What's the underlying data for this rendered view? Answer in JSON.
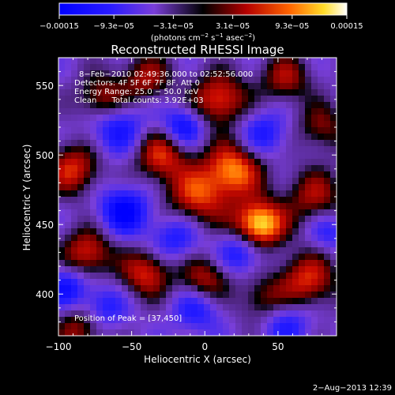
{
  "chart_data": {
    "type": "heatmap",
    "title": "Reconstructed RHESSI Image",
    "xlabel": "Heliocentric X (arcsec)",
    "ylabel": "Heliocentric Y (arcsec)",
    "xlim": [
      -100,
      90
    ],
    "ylim": [
      370,
      570
    ],
    "x_ticks": [
      -100,
      -50,
      0,
      50
    ],
    "x_tick_labels": [
      "−100",
      "−50",
      "0",
      "50"
    ],
    "y_ticks": [
      400,
      450,
      500,
      550
    ],
    "y_tick_labels": [
      "400",
      "450",
      "500",
      "550"
    ],
    "colorbar": {
      "range": [
        -0.00015,
        0.00015
      ],
      "ticks": [
        -0.00015,
        -9.3e-05,
        -3.1e-05,
        3.1e-05,
        9.3e-05,
        0.00015
      ],
      "tick_labels": [
        "−0.00015",
        "−9.3e−05",
        "−3.1e−05",
        "3.1e−05",
        "9.3e−05",
        "0.00015"
      ],
      "units_text": "(photons cm",
      "units_sup1": "−2",
      "units_mid": " s",
      "units_sup2": "−1",
      "units_tail": " asec",
      "units_sup3": "−2",
      "units_close": ")",
      "colors": [
        "#0000ff",
        "#7a3ed8",
        "#000000",
        "#b40000",
        "#ff6400",
        "#ffdc28",
        "#ffffff"
      ]
    },
    "info_lines": [
      "8−Feb−2010 02:49:36.000 to 02:52:56.000",
      "Detectors: 4F 5F 6F 7F 8F, Att 0",
      "Energy Range: 25.0 − 50.0 keV",
      "Clean      Total counts: 3.92E+03"
    ],
    "peak_label": "Position of Peak = [37,450]",
    "peak": {
      "x": 37,
      "y": 450
    },
    "blobs": [
      {
        "x": 37,
        "y": 450,
        "v": 1.5,
        "s": 12
      },
      {
        "x": 20,
        "y": 490,
        "v": 1.1,
        "s": 14
      },
      {
        "x": -5,
        "y": 470,
        "v": 0.9,
        "s": 15
      },
      {
        "x": -30,
        "y": 500,
        "v": 0.9,
        "s": 13
      },
      {
        "x": 10,
        "y": 540,
        "v": 1.0,
        "s": 13
      },
      {
        "x": 55,
        "y": 555,
        "v": 0.7,
        "s": 12
      },
      {
        "x": 75,
        "y": 470,
        "v": 0.7,
        "s": 14
      },
      {
        "x": 70,
        "y": 410,
        "v": 0.9,
        "s": 14
      },
      {
        "x": 40,
        "y": 395,
        "v": 0.6,
        "s": 12
      },
      {
        "x": 0,
        "y": 410,
        "v": 0.8,
        "s": 12
      },
      {
        "x": -40,
        "y": 415,
        "v": 0.9,
        "s": 12
      },
      {
        "x": -80,
        "y": 430,
        "v": 0.9,
        "s": 12
      },
      {
        "x": -90,
        "y": 490,
        "v": 0.9,
        "s": 13
      },
      {
        "x": -70,
        "y": 540,
        "v": 0.8,
        "s": 12
      },
      {
        "x": -40,
        "y": 555,
        "v": 0.7,
        "s": 12
      },
      {
        "x": -85,
        "y": 375,
        "v": 0.7,
        "s": 12
      },
      {
        "x": 80,
        "y": 520,
        "v": 0.6,
        "s": 12
      },
      {
        "x": -55,
        "y": 460,
        "v": -0.9,
        "s": 12
      },
      {
        "x": -60,
        "y": 520,
        "v": -0.7,
        "s": 14
      },
      {
        "x": -20,
        "y": 440,
        "v": -0.6,
        "s": 12
      },
      {
        "x": 25,
        "y": 430,
        "v": -0.7,
        "s": 11
      },
      {
        "x": 40,
        "y": 515,
        "v": -0.6,
        "s": 12
      },
      {
        "x": -15,
        "y": 520,
        "v": -0.8,
        "s": 10
      },
      {
        "x": -5,
        "y": 390,
        "v": -0.6,
        "s": 12
      },
      {
        "x": 55,
        "y": 380,
        "v": -0.6,
        "s": 12
      },
      {
        "x": -95,
        "y": 405,
        "v": -0.7,
        "s": 10
      },
      {
        "x": 85,
        "y": 445,
        "v": -0.5,
        "s": 10
      },
      {
        "x": -70,
        "y": 390,
        "v": -0.6,
        "s": 11
      }
    ],
    "footer_date": "2−Aug−2013 12:39"
  }
}
